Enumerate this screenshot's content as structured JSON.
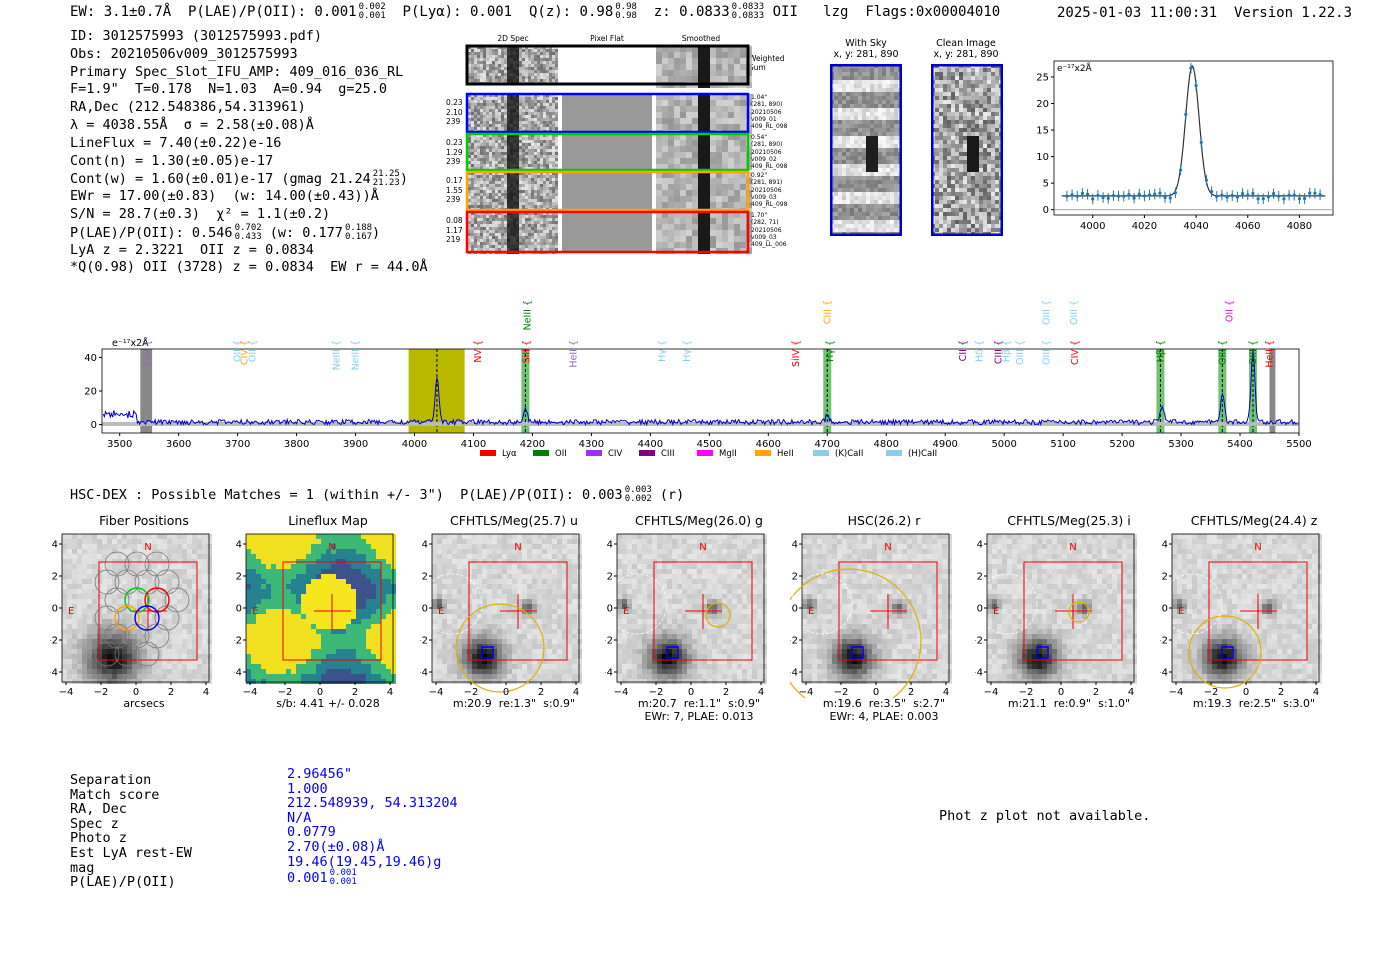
{
  "header": {
    "left": "EW: 3.1±0.7Å  P(LAE)/P(OII): 0.001",
    "plae_frac": [
      "0.002",
      "0.001"
    ],
    "plya": "  P(Lyα): 0.001  Q(z): 0.98",
    "qz_frac": [
      "0.98",
      "0.98"
    ],
    "z": "  z: 0.0833",
    "z_frac": [
      "0.0833",
      "0.0833"
    ],
    "tail": " OII   lzg  Flags:0x00004010",
    "right": "2025-01-03 11:00:31  Version 1.22.3"
  },
  "info": {
    "id": "ID: 3012575993 (3012575993.pdf)",
    "obs": "Obs: 20210506v009_3012575993",
    "primary": "Primary Spec_Slot_IFU_AMP: 409_016_036_RL",
    "fiber": "F=1.9\"  T=0.178  N=1.03  A=0.94  g=25.0",
    "radec": "RA,Dec (212.548386,54.313961)",
    "lambda": "λ = 4038.55Å  σ = 2.58(±0.08)Å",
    "lineflux": "LineFlux = 7.40(±0.22)e-16",
    "contn": "Cont(n) = 1.30(±0.05)e-17",
    "contw": "Cont(w) = 1.60(±0.01)e-17 (gmag 21.24",
    "contw_frac": [
      "21.25",
      "21.23"
    ],
    "ewr": "EWr = 17.00(±0.83)  (w: 14.00(±0.43))Å",
    "sn": "S/N = 28.7(±0.3)  χ² = 1.1(±0.2)",
    "plae": "P(LAE)/P(OII): 0.546",
    "plae_frac1": [
      "0.702",
      "0.433"
    ],
    "plae_w": " (w: 0.177",
    "plae_frac2": [
      "0.188",
      "0.167"
    ],
    "lya": "LyA z = 2.3221  OII z = 0.0834",
    "q": "*Q(0.98) OII (3728) z = 0.0834  EW r = 44.0Å"
  },
  "spec2d": {
    "cols": [
      "2D Spec",
      "Pixel Flat",
      "Smoothed"
    ],
    "weighted": "Weighted Sum",
    "rows": [
      {
        "left": [
          "0.23",
          "2.10",
          "239"
        ],
        "right": [
          "1.04\"",
          "(281, 890)",
          "20210506",
          "v009_01",
          "409_RL_098"
        ]
      },
      {
        "left": [
          "0.23",
          "1.29",
          "239"
        ],
        "right": [
          "0.54\"",
          "(281, 890)",
          "20210506",
          "v009_02",
          "409_RL_098"
        ]
      },
      {
        "left": [
          "0.17",
          "1.55",
          "239"
        ],
        "right": [
          "0.92\"",
          "(281, 891)",
          "20210506",
          "v009_03",
          "409_RL_098"
        ]
      },
      {
        "left": [
          "0.08",
          "1.17",
          "219"
        ],
        "right": [
          "1.70\"",
          "(282, 71)",
          "20210506",
          "v009_03",
          "409_LL_006"
        ]
      }
    ]
  },
  "sky": {
    "with_sky": "With Sky",
    "clean": "Clean Image",
    "coords": "x, y: 281, 890"
  },
  "line_fit": {
    "ylabel": "e⁻¹⁷x2Å",
    "x_ticks": [
      "4000",
      "4020",
      "4040",
      "4060",
      "4080"
    ],
    "y_ticks": [
      "0",
      "5",
      "10",
      "15",
      "20",
      "25"
    ],
    "chart_data": {
      "type": "line",
      "xlim": [
        3985,
        4093
      ],
      "ylim": [
        -1,
        28
      ],
      "peak_center": 4038.55,
      "peak_amp": 24.5,
      "sigma": 2.58,
      "baseline": 2.6
    }
  },
  "full_spectrum": {
    "ylabel": "e⁻¹⁷x2Å",
    "x_ticks": [
      "3500",
      "3600",
      "3700",
      "3800",
      "3900",
      "4000",
      "4100",
      "4200",
      "4300",
      "4400",
      "4500",
      "4600",
      "4700",
      "4800",
      "4900",
      "5000",
      "5100",
      "5200",
      "5300",
      "5400",
      "5500"
    ],
    "y_ticks": [
      "0",
      "20",
      "40"
    ],
    "chart_data": {
      "type": "line",
      "xlim": [
        3470,
        5500
      ],
      "ylim": [
        -5,
        45
      ],
      "peaks": [
        {
          "x": 4038,
          "y": 27
        },
        {
          "x": 4188,
          "y": 8
        },
        {
          "x": 4700,
          "y": 4
        },
        {
          "x": 5268,
          "y": 10
        },
        {
          "x": 5370,
          "y": 18
        },
        {
          "x": 5422,
          "y": 42
        }
      ]
    },
    "lines": [
      {
        "label": "SiIV",
        "x": 3547,
        "color": "#9467bd",
        "row": 0
      },
      {
        "label": "OII",
        "x": 3700,
        "color": "#87ceeb",
        "row": 0
      },
      {
        "label": "CIV",
        "x": 3712,
        "color": "#ffa500",
        "row": 0
      },
      {
        "label": "OII",
        "x": 3725,
        "color": "#87ceeb",
        "row": 0
      },
      {
        "label": "NeIII",
        "x": 3868,
        "color": "#87ceeb",
        "row": 0
      },
      {
        "label": "NeIII",
        "x": 3900,
        "color": "#87ceeb",
        "row": 0
      },
      {
        "label": "NV",
        "x": 4108,
        "color": "#ff0000",
        "row": 0
      },
      {
        "label": "NeIII",
        "x": 4192,
        "color": "#008000",
        "row": 1
      },
      {
        "label": "SiII",
        "x": 4190,
        "color": "#ff0000",
        "row": 0
      },
      {
        "label": "HeII",
        "x": 4270,
        "color": "#9467bd",
        "row": 0
      },
      {
        "label": "Hγ",
        "x": 4420,
        "color": "#87ceeb",
        "row": 0
      },
      {
        "label": "Hγ",
        "x": 4462,
        "color": "#87ceeb",
        "row": 0
      },
      {
        "label": "SiIV",
        "x": 4647,
        "color": "#ff0000",
        "row": 0
      },
      {
        "label": "CIII",
        "x": 4700,
        "color": "#ffa500",
        "row": 1
      },
      {
        "label": "Hγ",
        "x": 4705,
        "color": "#008000",
        "row": 0
      },
      {
        "label": "CII",
        "x": 4930,
        "color": "#800080",
        "row": 0
      },
      {
        "label": "Hδ",
        "x": 4958,
        "color": "#87ceeb",
        "row": 0
      },
      {
        "label": "CIII",
        "x": 4990,
        "color": "#800080",
        "row": 0
      },
      {
        "label": "Hβ",
        "x": 5004,
        "color": "#87ceeb",
        "row": 0
      },
      {
        "label": "OIII",
        "x": 5027,
        "color": "#87ceeb",
        "row": 0
      },
      {
        "label": "OIII",
        "x": 5072,
        "color": "#87ceeb",
        "row": 1
      },
      {
        "label": "OIII",
        "x": 5072,
        "color": "#87ceeb",
        "row": 0
      },
      {
        "label": "OIII",
        "x": 5118,
        "color": "#87ceeb",
        "row": 1
      },
      {
        "label": "CIV",
        "x": 5120,
        "color": "#ff0000",
        "row": 0
      },
      {
        "label": "Hβ",
        "x": 5265,
        "color": "#008000",
        "row": 0
      },
      {
        "label": "OII",
        "x": 5382,
        "color": "#ff00ff",
        "row": 1
      },
      {
        "label": "OIII",
        "x": 5370,
        "color": "#008000",
        "row": 0
      },
      {
        "label": "OIII",
        "x": 5422,
        "color": "#008000",
        "row": 0
      },
      {
        "label": "HeII",
        "x": 5450,
        "color": "#ff0000",
        "row": 0
      }
    ],
    "legend": [
      {
        "label": "Lyα",
        "color": "#ff0000"
      },
      {
        "label": "OII",
        "color": "#008000"
      },
      {
        "label": "CIV",
        "color": "#9b30ff"
      },
      {
        "label": "CIII",
        "color": "#800080"
      },
      {
        "label": "MgII",
        "color": "#ff00ff"
      },
      {
        "label": "HeII",
        "color": "#ffa500"
      },
      {
        "label": "(K)CaII",
        "color": "#87ceeb"
      },
      {
        "label": "(H)CaII",
        "color": "#87ceeb"
      }
    ]
  },
  "hsc": {
    "title": "HSC-DEX : Possible Matches = 1 (within +/- 3\")  P(LAE)/P(OII): 0.003",
    "title_frac": [
      "0.003",
      "0.002"
    ],
    "title_tail": " (r)"
  },
  "cutouts": [
    {
      "title": "Fiber Positions",
      "bottom": "arcsecs",
      "bottom2": ""
    },
    {
      "title": "Lineflux Map",
      "bottom": "s/b: 4.41 +/- 0.028",
      "bottom2": ""
    },
    {
      "title": "CFHTLS/Meg(25.7) u",
      "bottom": "m:20.9  re:1.3\"  s:0.9\"",
      "bottom2": ""
    },
    {
      "title": "CFHTLS/Meg(26.0) g",
      "bottom": "m:20.7  re:1.1\"  s:0.9\"",
      "bottom2": "EWr: 7, PLAE: 0.013"
    },
    {
      "title": "HSC(26.2) r",
      "bottom": "m:19.6  re:3.5\"  s:2.7\"",
      "bottom2": "EWr: 4, PLAE: 0.003"
    },
    {
      "title": "CFHTLS/Meg(25.3) i",
      "bottom": "m:21.1  re:0.9\"  s:1.0\"",
      "bottom2": ""
    },
    {
      "title": "CFHTLS/Meg(24.4) z",
      "bottom": "m:19.3  re:2.5\"  s:3.0\"",
      "bottom2": ""
    }
  ],
  "cutout_axis": {
    "x_ticks": [
      "−4",
      "−2",
      "0",
      "2",
      "4"
    ],
    "y_ticks": [
      "4",
      "2",
      "0",
      "−2",
      "−4"
    ],
    "north": "N",
    "east": "E"
  },
  "match_table": {
    "labels": [
      "Separation",
      "Match score",
      "RA, Dec",
      "Spec z",
      "Photo z",
      "Est LyA rest-EW",
      "mag",
      "P(LAE)/P(OII)"
    ],
    "values": [
      "2.96456\"",
      "1.000",
      "212.548939, 54.313204",
      "N/A",
      "0.0779",
      "2.70(±0.08)Å",
      "19.46(19.45,19.46)g",
      "0.001"
    ],
    "plae_frac": [
      "0.001",
      "0.001"
    ]
  },
  "photz": "Phot z plot not available."
}
